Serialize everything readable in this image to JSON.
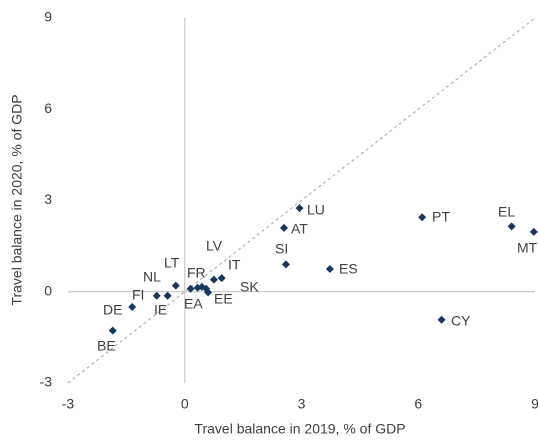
{
  "chart_data": {
    "type": "scatter",
    "xlabel": "Travel balance in 2019, % of GDP",
    "ylabel": "Travel balance in 2020, % of GDP",
    "labels": [
      "LU",
      "AT",
      "SI",
      "ES",
      "PT",
      "EL",
      "MT",
      "CY",
      "BE",
      "DE",
      "FI",
      "IE",
      "LT",
      "NL",
      "FR",
      "EA",
      "LV",
      "IT",
      "SK",
      "EE"
    ],
    "x": [
      2.95,
      2.55,
      2.6,
      3.73,
      6.1,
      8.4,
      8.97,
      6.6,
      -1.85,
      -1.35,
      -0.72,
      -0.44,
      -0.23,
      0.15,
      0.33,
      0.44,
      0.75,
      0.95,
      0.55,
      0.6
    ],
    "y": [
      2.75,
      2.1,
      0.9,
      0.75,
      2.45,
      2.15,
      1.97,
      -0.92,
      -1.28,
      -0.5,
      -0.13,
      -0.13,
      0.2,
      0.1,
      0.13,
      0.16,
      0.4,
      0.45,
      0.1,
      -0.02
    ],
    "color": "#17375e",
    "xlim": [
      -3,
      9
    ],
    "ylim": [
      -3,
      9
    ],
    "xticks": [
      -3,
      0,
      3,
      6,
      9
    ],
    "yticks": [
      -3,
      0,
      3,
      6,
      9
    ],
    "diagonal": true
  }
}
